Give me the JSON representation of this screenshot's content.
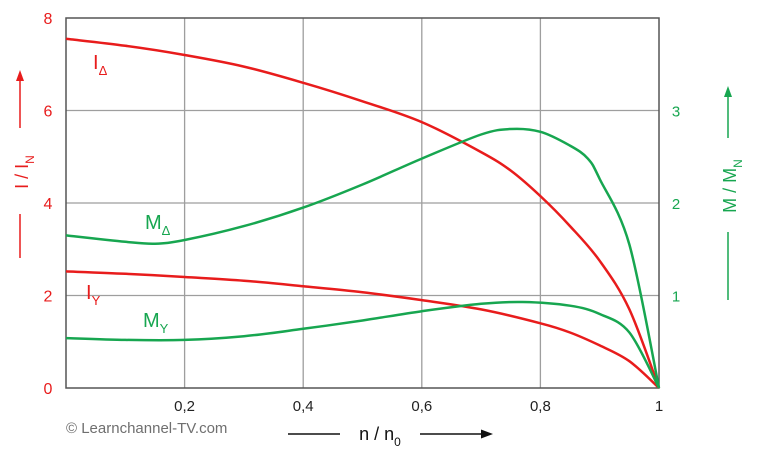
{
  "chart_data": {
    "type": "line",
    "title": "",
    "xlabel": "n / n",
    "xlabel_sub": "0",
    "ylabel_left": "I / I",
    "ylabel_left_sub": "N",
    "ylabel_right": "M / M",
    "ylabel_right_sub": "N",
    "xlim": [
      0,
      1
    ],
    "ylim_left": [
      0,
      8
    ],
    "ylim_right": [
      0,
      4
    ],
    "x_ticks": [
      0.2,
      0.4,
      0.6,
      0.8,
      1
    ],
    "x_tick_labels": [
      "0,2",
      "0,4",
      "0,6",
      "0,8",
      "1"
    ],
    "y_ticks_left": [
      0,
      2,
      4,
      6,
      8
    ],
    "y_ticks_right": [
      1,
      2,
      3
    ],
    "grid": true,
    "colors": {
      "current": "#e81c1c",
      "torque": "#17a650",
      "grid": "#9e9e9e",
      "axis": "#555555"
    },
    "series": [
      {
        "name": "I",
        "sub": "Δ",
        "axis": "left",
        "color": "#e81c1c",
        "points": [
          [
            0,
            7.55
          ],
          [
            0.1,
            7.4
          ],
          [
            0.2,
            7.2
          ],
          [
            0.3,
            6.95
          ],
          [
            0.4,
            6.6
          ],
          [
            0.5,
            6.2
          ],
          [
            0.6,
            5.75
          ],
          [
            0.7,
            5.1
          ],
          [
            0.75,
            4.7
          ],
          [
            0.8,
            4.15
          ],
          [
            0.85,
            3.5
          ],
          [
            0.9,
            2.75
          ],
          [
            0.95,
            1.7
          ],
          [
            1,
            0
          ]
        ]
      },
      {
        "name": "I",
        "sub": "Y",
        "axis": "left",
        "color": "#e81c1c",
        "points": [
          [
            0,
            2.52
          ],
          [
            0.1,
            2.47
          ],
          [
            0.2,
            2.4
          ],
          [
            0.3,
            2.32
          ],
          [
            0.4,
            2.2
          ],
          [
            0.5,
            2.07
          ],
          [
            0.6,
            1.9
          ],
          [
            0.7,
            1.7
          ],
          [
            0.8,
            1.4
          ],
          [
            0.85,
            1.2
          ],
          [
            0.9,
            0.92
          ],
          [
            0.95,
            0.58
          ],
          [
            1,
            0
          ]
        ]
      },
      {
        "name": "M",
        "sub": "Δ",
        "axis": "right",
        "color": "#17a650",
        "points": [
          [
            0,
            1.65
          ],
          [
            0.1,
            1.58
          ],
          [
            0.15,
            1.56
          ],
          [
            0.2,
            1.6
          ],
          [
            0.3,
            1.75
          ],
          [
            0.4,
            1.95
          ],
          [
            0.5,
            2.2
          ],
          [
            0.6,
            2.48
          ],
          [
            0.7,
            2.74
          ],
          [
            0.75,
            2.8
          ],
          [
            0.8,
            2.77
          ],
          [
            0.85,
            2.62
          ],
          [
            0.88,
            2.48
          ],
          [
            0.9,
            2.26
          ],
          [
            0.95,
            1.55
          ],
          [
            1,
            0
          ]
        ]
      },
      {
        "name": "M",
        "sub": "Y",
        "axis": "right",
        "color": "#17a650",
        "points": [
          [
            0,
            0.54
          ],
          [
            0.1,
            0.52
          ],
          [
            0.2,
            0.52
          ],
          [
            0.3,
            0.56
          ],
          [
            0.4,
            0.64
          ],
          [
            0.5,
            0.73
          ],
          [
            0.6,
            0.83
          ],
          [
            0.7,
            0.91
          ],
          [
            0.77,
            0.93
          ],
          [
            0.85,
            0.89
          ],
          [
            0.9,
            0.8
          ],
          [
            0.95,
            0.6
          ],
          [
            1,
            0
          ]
        ]
      }
    ]
  },
  "copyright": "© Learnchannel-TV.com"
}
